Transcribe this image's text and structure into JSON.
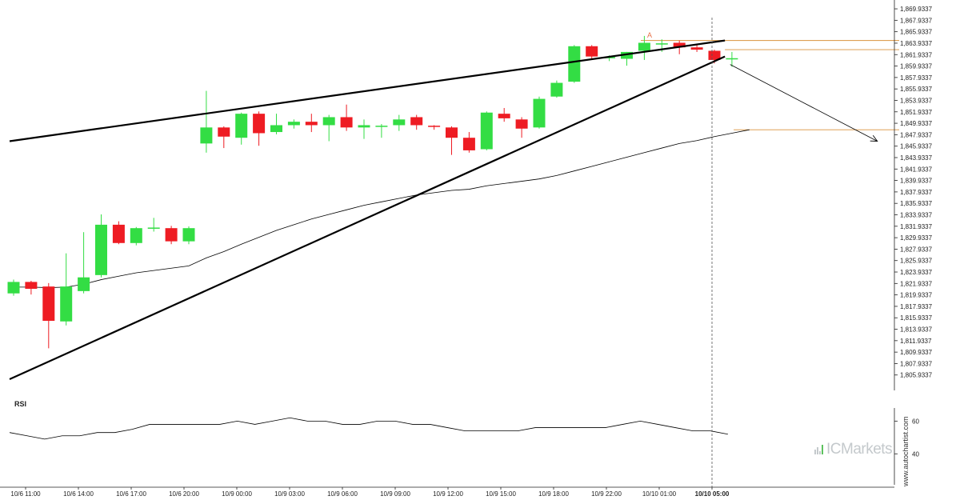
{
  "chart_data": {
    "type": "candlestick",
    "y_ticks": [
      "1,869.9337",
      "1,867.9337",
      "1,865.9337",
      "1,863.9337",
      "1,861.9337",
      "1,859.9337",
      "1,857.9337",
      "1,855.9337",
      "1,853.9337",
      "1,851.9337",
      "1,849.9337",
      "1,847.9337",
      "1,845.9337",
      "1,843.9337",
      "1,841.9337",
      "1,839.9337",
      "1,837.9337",
      "1,835.9337",
      "1,833.9337",
      "1,831.9337",
      "1,829.9337",
      "1,827.9337",
      "1,825.9337",
      "1,823.9337",
      "1,821.9337",
      "1,819.9337",
      "1,817.9337",
      "1,815.9337",
      "1,813.9337",
      "1,811.9337",
      "1,809.9337",
      "1,807.9337",
      "1,805.9337"
    ],
    "y_tick_values": [
      1869.9337,
      1867.9337,
      1865.9337,
      1863.9337,
      1861.9337,
      1859.9337,
      1857.9337,
      1855.9337,
      1853.9337,
      1851.9337,
      1849.9337,
      1847.9337,
      1845.9337,
      1843.9337,
      1841.9337,
      1839.9337,
      1837.9337,
      1835.9337,
      1833.9337,
      1831.9337,
      1829.9337,
      1827.9337,
      1825.9337,
      1823.9337,
      1821.9337,
      1819.9337,
      1817.9337,
      1815.9337,
      1813.9337,
      1811.9337,
      1809.9337,
      1807.9337,
      1805.9337
    ],
    "ylim": [
      1804.5,
      1870.5
    ],
    "x_labels": [
      "10/6 11:00",
      "10/6 14:00",
      "10/6 17:00",
      "10/6 20:00",
      "10/9 00:00",
      "10/9 03:00",
      "10/9 06:00",
      "10/9 09:00",
      "10/9 12:00",
      "10/9 15:00",
      "10/9 18:00",
      "10/9 22:00",
      "10/10 01:00",
      "10/10 05:00"
    ],
    "current_label": "10/10 05:00",
    "candles": [
      {
        "o": 1820.2,
        "h": 1822.6,
        "l": 1819.8,
        "c": 1822.2
      },
      {
        "o": 1822.2,
        "h": 1822.4,
        "l": 1820.0,
        "c": 1821.0
      },
      {
        "o": 1821.4,
        "h": 1822.0,
        "l": 1810.6,
        "c": 1815.4
      },
      {
        "o": 1815.3,
        "h": 1827.2,
        "l": 1814.6,
        "c": 1821.4
      },
      {
        "o": 1820.6,
        "h": 1830.9,
        "l": 1820.2,
        "c": 1823.0
      },
      {
        "o": 1823.4,
        "h": 1834.0,
        "l": 1823.0,
        "c": 1832.2
      },
      {
        "o": 1832.2,
        "h": 1832.8,
        "l": 1828.8,
        "c": 1829.0
      },
      {
        "o": 1829.0,
        "h": 1831.8,
        "l": 1828.6,
        "c": 1831.6
      },
      {
        "o": 1831.6,
        "h": 1833.4,
        "l": 1831.0,
        "c": 1831.6
      },
      {
        "o": 1831.6,
        "h": 1832.0,
        "l": 1828.8,
        "c": 1829.3
      },
      {
        "o": 1829.3,
        "h": 1831.9,
        "l": 1828.8,
        "c": 1831.6
      },
      {
        "o": 1846.4,
        "h": 1855.6,
        "l": 1844.8,
        "c": 1849.2
      },
      {
        "o": 1849.2,
        "h": 1849.4,
        "l": 1845.6,
        "c": 1847.6
      },
      {
        "o": 1847.4,
        "h": 1851.8,
        "l": 1846.2,
        "c": 1851.6
      },
      {
        "o": 1851.6,
        "h": 1852.0,
        "l": 1846.0,
        "c": 1848.2
      },
      {
        "o": 1848.4,
        "h": 1851.6,
        "l": 1848.0,
        "c": 1849.6
      },
      {
        "o": 1849.6,
        "h": 1850.6,
        "l": 1849.0,
        "c": 1850.2
      },
      {
        "o": 1850.2,
        "h": 1851.6,
        "l": 1848.4,
        "c": 1849.6
      },
      {
        "o": 1849.6,
        "h": 1851.4,
        "l": 1846.8,
        "c": 1851.0
      },
      {
        "o": 1851.0,
        "h": 1853.2,
        "l": 1848.6,
        "c": 1849.2
      },
      {
        "o": 1849.2,
        "h": 1850.6,
        "l": 1847.2,
        "c": 1849.6
      },
      {
        "o": 1849.4,
        "h": 1849.8,
        "l": 1847.4,
        "c": 1849.4
      },
      {
        "o": 1849.6,
        "h": 1851.4,
        "l": 1848.6,
        "c": 1850.6
      },
      {
        "o": 1851.0,
        "h": 1851.4,
        "l": 1848.8,
        "c": 1849.6
      },
      {
        "o": 1849.4,
        "h": 1849.6,
        "l": 1848.8,
        "c": 1849.2
      },
      {
        "o": 1849.2,
        "h": 1849.4,
        "l": 1844.4,
        "c": 1847.4
      },
      {
        "o": 1847.4,
        "h": 1848.4,
        "l": 1844.8,
        "c": 1845.2
      },
      {
        "o": 1845.4,
        "h": 1852.0,
        "l": 1845.2,
        "c": 1851.8
      },
      {
        "o": 1851.6,
        "h": 1852.6,
        "l": 1850.2,
        "c": 1850.8
      },
      {
        "o": 1850.6,
        "h": 1851.0,
        "l": 1847.4,
        "c": 1849.0
      },
      {
        "o": 1849.2,
        "h": 1854.6,
        "l": 1849.0,
        "c": 1854.2
      },
      {
        "o": 1854.6,
        "h": 1857.4,
        "l": 1854.4,
        "c": 1857.0
      },
      {
        "o": 1857.2,
        "h": 1863.6,
        "l": 1857.0,
        "c": 1863.4
      },
      {
        "o": 1863.4,
        "h": 1863.6,
        "l": 1861.0,
        "c": 1861.6
      },
      {
        "o": 1861.4,
        "h": 1861.8,
        "l": 1860.8,
        "c": 1861.4
      },
      {
        "o": 1861.2,
        "h": 1862.4,
        "l": 1860.0,
        "c": 1862.4
      },
      {
        "o": 1862.6,
        "h": 1865.2,
        "l": 1861.0,
        "c": 1864.0
      },
      {
        "o": 1863.8,
        "h": 1864.6,
        "l": 1862.4,
        "c": 1863.8
      },
      {
        "o": 1864.0,
        "h": 1864.4,
        "l": 1862.0,
        "c": 1863.2
      },
      {
        "o": 1863.2,
        "h": 1863.8,
        "l": 1862.4,
        "c": 1862.8
      },
      {
        "o": 1862.6,
        "h": 1862.8,
        "l": 1860.4,
        "c": 1861.0
      },
      {
        "o": 1861.2,
        "h": 1862.4,
        "l": 1859.8,
        "c": 1861.2
      }
    ],
    "moving_average": [
      1821.3,
      1821.3,
      1821.2,
      1821.3,
      1821.8,
      1822.6,
      1823.2,
      1823.8,
      1824.2,
      1824.6,
      1825.0,
      1826.4,
      1827.5,
      1828.8,
      1830.0,
      1831.2,
      1832.2,
      1833.2,
      1834.0,
      1834.8,
      1835.6,
      1836.2,
      1836.8,
      1837.4,
      1837.8,
      1838.2,
      1838.4,
      1839.0,
      1839.4,
      1839.8,
      1840.2,
      1840.8,
      1841.6,
      1842.4,
      1843.2,
      1844.0,
      1844.8,
      1845.6,
      1846.4,
      1846.9,
      1847.6,
      1848.2,
      1848.8
    ],
    "resistance_line": {
      "from": {
        "i": 0,
        "y": 1846.8
      },
      "to": {
        "i": 40.6,
        "y": 1864.4
      }
    },
    "support_line": {
      "from": {
        "i": 0,
        "y": 1805.2
      },
      "to": {
        "i": 40.6,
        "y": 1861.6
      }
    },
    "horizontal_levels": [
      1864.4,
      1862.8,
      1848.8
    ],
    "forecast_arrow": {
      "from": {
        "i": 40.9,
        "y": 1860.2
      },
      "to": {
        "i": 49.3,
        "y": 1846.8
      }
    },
    "point_label": "A",
    "point_label_at": {
      "i": 36.3,
      "y": 1864.9
    },
    "rsi": {
      "label": "RSI",
      "ticks": [
        60,
        40
      ],
      "ylim": [
        24,
        68
      ],
      "values": [
        53,
        51,
        49,
        51,
        51,
        53,
        53,
        55,
        58,
        58,
        58,
        58,
        58,
        60,
        58,
        60,
        62,
        60,
        60,
        58,
        58,
        60,
        60,
        58,
        58,
        56,
        54,
        54,
        54,
        54,
        56,
        56,
        56,
        56,
        56,
        58,
        60,
        58,
        56,
        54,
        54,
        52
      ]
    },
    "colors": {
      "bull": "#33dd44",
      "bear": "#ee1c23",
      "trendline": "#000000",
      "level": "#d9923c",
      "indicator": "#000000"
    }
  },
  "branding": {
    "watermark": "ICMarkets",
    "credit": "www.autochartist.com"
  }
}
